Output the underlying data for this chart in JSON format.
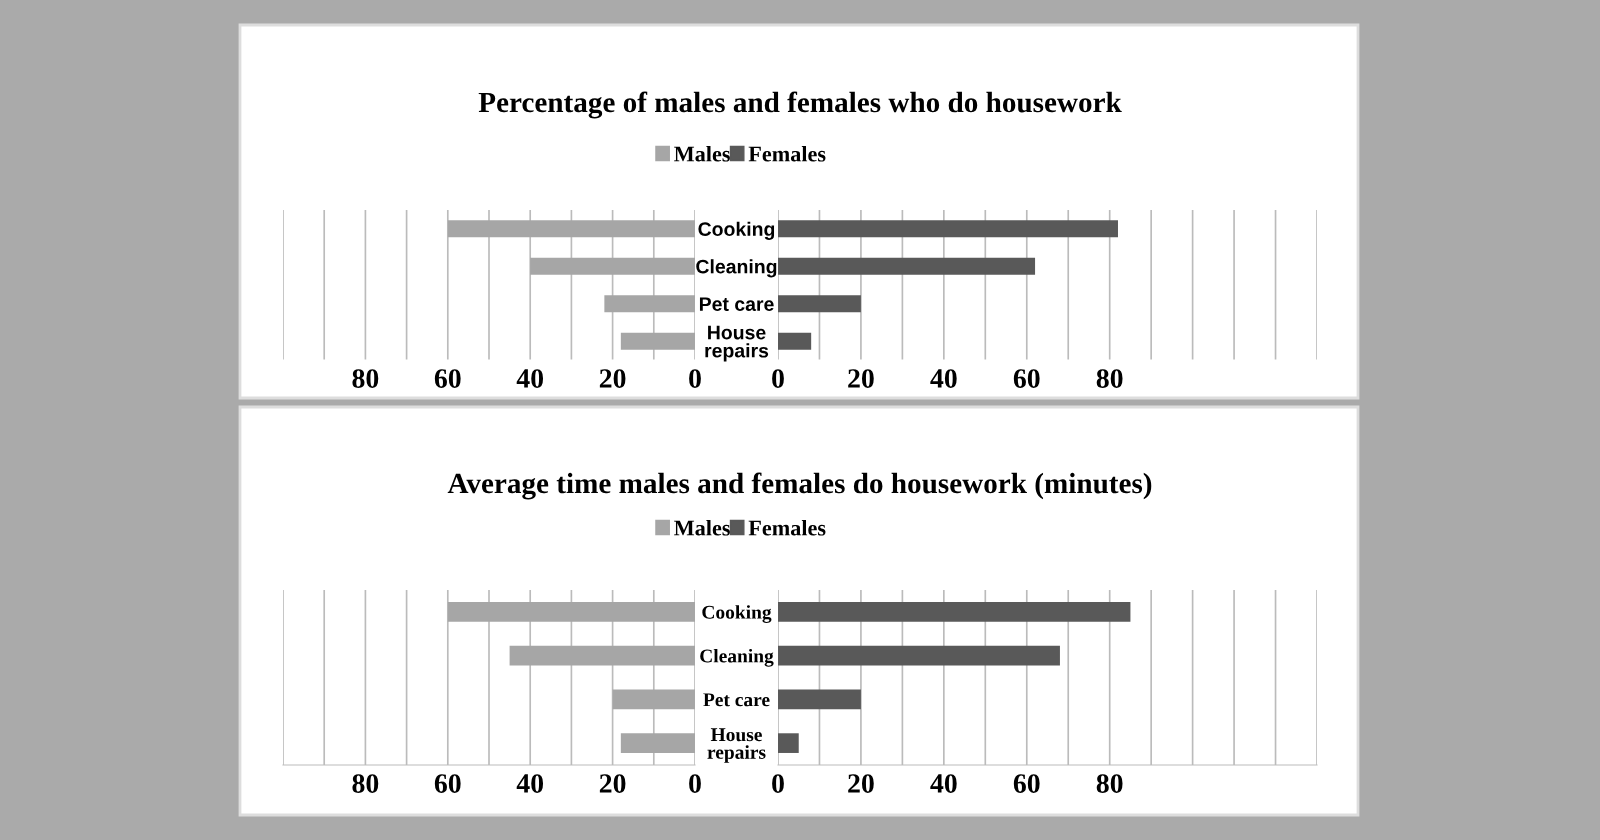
{
  "chart_data": [
    {
      "type": "bar",
      "orientation": "horizontal",
      "title": "Percentage of males and females who do housework",
      "categories": [
        "Cooking",
        "Cleaning",
        "Pet care",
        "House repairs"
      ],
      "series": [
        {
          "name": "Males",
          "color": "#a6a6a6",
          "values": [
            60,
            40,
            22,
            18
          ]
        }
      ],
      "xlim": [
        100,
        0
      ],
      "xticks": [
        {
          "value": 100,
          "label": null
        },
        {
          "value": 90,
          "label": null
        },
        80,
        {
          "value": 70,
          "label": null
        },
        60,
        {
          "value": 50,
          "label": null
        },
        40,
        {
          "value": 30,
          "label": null
        },
        20,
        {
          "value": 10,
          "label": null
        },
        0
      ],
      "grid": "x",
      "legend": "top"
    },
    {
      "type": "bar",
      "orientation": "horizontal",
      "categories": [
        null,
        null,
        null,
        null
      ],
      "series": [
        {
          "name": "Females",
          "color": "#595959",
          "values": [
            82,
            62,
            20,
            8
          ]
        }
      ],
      "xlim": [
        0,
        130
      ],
      "xticks": [
        0,
        {
          "value": 10,
          "label": null
        },
        20,
        {
          "value": 30,
          "label": null
        },
        40,
        {
          "value": 50,
          "label": null
        },
        60,
        {
          "value": 70,
          "label": null
        },
        80,
        {
          "value": 90,
          "label": null
        },
        {
          "value": 100,
          "label": null
        },
        {
          "value": 110,
          "label": null
        },
        {
          "value": 120,
          "label": null
        },
        {
          "value": 130,
          "label": null
        }
      ],
      "grid": "x",
      "legend": "top"
    },
    {
      "type": "bar",
      "orientation": "horizontal",
      "title": "Average time males and females do housework (minutes)",
      "categories": [
        "Cooking",
        "Cleaning",
        "Pet care",
        "House repairs"
      ],
      "series": [
        {
          "name": "Males",
          "color": "#a6a6a6",
          "values": [
            60,
            45,
            20,
            18
          ]
        }
      ],
      "xlim": [
        100,
        0
      ],
      "xticks": [
        {
          "value": 100,
          "label": null
        },
        {
          "value": 90,
          "label": null
        },
        80,
        {
          "value": 70,
          "label": null
        },
        60,
        {
          "value": 50,
          "label": null
        },
        40,
        {
          "value": 30,
          "label": null
        },
        20,
        {
          "value": 10,
          "label": null
        },
        0
      ],
      "grid": "x",
      "legend": "top"
    },
    {
      "type": "bar",
      "orientation": "horizontal",
      "categories": [
        null,
        null,
        null,
        null
      ],
      "series": [
        {
          "name": "Females",
          "color": "#595959",
          "values": [
            85,
            68,
            20,
            5
          ]
        }
      ],
      "xlim": [
        0,
        130
      ],
      "xticks": [
        0,
        {
          "value": 10,
          "label": null
        },
        20,
        {
          "value": 30,
          "label": null
        },
        40,
        {
          "value": 50,
          "label": null
        },
        60,
        {
          "value": 70,
          "label": null
        },
        80,
        {
          "value": 90,
          "label": null
        },
        {
          "value": 100,
          "label": null
        },
        {
          "value": 110,
          "label": null
        },
        {
          "value": 120,
          "label": null
        },
        {
          "value": 130,
          "label": null
        }
      ],
      "grid": "x",
      "legend": "top"
    }
  ]
}
